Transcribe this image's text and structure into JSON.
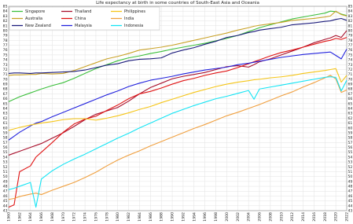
{
  "chart_data": {
    "type": "line",
    "title": "Life expectancy at birth in some countries of South-East Asia and Oceania",
    "x": [
      1960,
      1961,
      1962,
      1964,
      1965,
      1966,
      1968,
      1970,
      1972,
      1974,
      1976,
      1978,
      1980,
      1982,
      1984,
      1986,
      1988,
      1990,
      1992,
      1994,
      1996,
      1998,
      2000,
      2002,
      2004,
      2005,
      2006,
      2008,
      2010,
      2012,
      2014,
      2016,
      2018,
      2019,
      2020,
      2021,
      2022
    ],
    "series": [
      {
        "name": "Singapore",
        "color": "#3cbf3c",
        "values": [
          65.4,
          65.9,
          66.4,
          67.2,
          67.6,
          68,
          68.7,
          69.3,
          70.2,
          71.2,
          72.2,
          73,
          73.8,
          74.4,
          74.8,
          75.3,
          75.7,
          76.2,
          76.6,
          77,
          77.4,
          77.9,
          78.4,
          79,
          79.8,
          80.2,
          80.6,
          81.2,
          81.8,
          82.4,
          82.8,
          83.2,
          83.6,
          84,
          83.9,
          83.4,
          83.1
        ]
      },
      {
        "name": "Australia",
        "color": "#c9a227",
        "values": [
          70.8,
          70.9,
          70.9,
          71,
          71,
          71.2,
          71.1,
          71.2,
          71.8,
          72.6,
          73.4,
          74.2,
          74.7,
          75.3,
          76,
          76.3,
          76.6,
          77,
          77.5,
          78,
          78.5,
          79,
          79.5,
          80.1,
          80.6,
          80.9,
          81.1,
          81.4,
          81.7,
          82.1,
          82.3,
          82.5,
          82.8,
          83,
          84,
          83.3,
          83
        ]
      },
      {
        "name": "New Zealand",
        "color": "#1c1c7c",
        "values": [
          71.2,
          71.3,
          71.3,
          71.2,
          71.3,
          71.3,
          71.4,
          71.5,
          71.6,
          71.9,
          72.4,
          72.9,
          73.2,
          73.8,
          74.1,
          74.2,
          74.4,
          75.4,
          76,
          76.5,
          77.2,
          77.8,
          78.6,
          79,
          79.6,
          79.8,
          80.1,
          80.4,
          80.7,
          81.2,
          81.4,
          81.6,
          81.9,
          82,
          82.3,
          82.5,
          82.1
        ]
      },
      {
        "name": "Thailand",
        "color": "#a8102c",
        "values": [
          54.4,
          54.8,
          55.2,
          56,
          56.4,
          56.8,
          57.9,
          59,
          60.3,
          61.7,
          62.8,
          63.5,
          64.2,
          65.5,
          67,
          68.3,
          69.2,
          70.1,
          70.6,
          71,
          71.4,
          72,
          72.6,
          72.8,
          72.5,
          73,
          73.6,
          74.2,
          75,
          75.8,
          76.6,
          77.5,
          78.2,
          78.5,
          79,
          78.6,
          80
        ]
      },
      {
        "name": "China",
        "color": "#e01414",
        "values": [
          43.7,
          44.2,
          51,
          52.2,
          54,
          55,
          57,
          59.1,
          60.8,
          61.8,
          62.4,
          63.6,
          64.7,
          66,
          67,
          67.5,
          68.2,
          69,
          69.7,
          70.2,
          70.8,
          71.3,
          71.7,
          72.4,
          73.2,
          73.6,
          74,
          74.8,
          75.5,
          76,
          76.6,
          77.2,
          77.8,
          78,
          78.4,
          78.2,
          78.6
        ]
      },
      {
        "name": "Malaysia",
        "color": "#2222dd",
        "values": [
          57.5,
          58.3,
          59.1,
          60.4,
          61,
          61.3,
          62.3,
          63.2,
          64.1,
          65,
          65.9,
          66.8,
          67.6,
          68.5,
          69.2,
          69.8,
          70.2,
          70.6,
          71.1,
          71.5,
          71.9,
          72.2,
          72.5,
          73,
          73.3,
          73.5,
          73.7,
          74.1,
          74.5,
          74.8,
          75.1,
          75.3,
          75.5,
          75.6,
          74.9,
          74.2,
          76.2
        ]
      },
      {
        "name": "Philippines",
        "color": "#f5c518",
        "values": [
          59.5,
          59.8,
          60.1,
          60.6,
          60.8,
          61,
          61.3,
          61.7,
          61.9,
          61.9,
          61.6,
          62,
          62.5,
          63.1,
          63.8,
          64.4,
          65.2,
          65.9,
          66.6,
          67.3,
          67.9,
          68.5,
          69,
          69.4,
          69.7,
          69.9,
          70,
          70.3,
          70.5,
          70.8,
          71.2,
          71.5,
          71.8,
          72,
          72.2,
          69.4,
          70.8
        ]
      },
      {
        "name": "India",
        "color": "#f0a040",
        "values": [
          45.3,
          45.5,
          45.9,
          46.4,
          46.6,
          46.3,
          47.2,
          48,
          48.8,
          49.8,
          50.9,
          52.2,
          53.4,
          54.4,
          55.3,
          56.3,
          57.2,
          58.1,
          59,
          59.9,
          60.7,
          61.6,
          62.5,
          63.2,
          64,
          64.4,
          64.8,
          65.7,
          66.6,
          67.4,
          68.4,
          69.3,
          70.3,
          70.8,
          70.1,
          67.3,
          67.8
        ]
      },
      {
        "name": "Indonesia",
        "color": "#14e4f4",
        "values": [
          47.3,
          47.6,
          48,
          48.8,
          43.7,
          49.5,
          51.2,
          52.5,
          53.6,
          54.6,
          55.7,
          56.8,
          57.9,
          58.9,
          60,
          61,
          62,
          63,
          63.8,
          64.6,
          65.3,
          66,
          66.5,
          67.1,
          67.7,
          65.9,
          68,
          68.4,
          68.8,
          69.2,
          69.6,
          70,
          70.4,
          70.5,
          70.4,
          67.6,
          69.8
        ]
      }
    ],
    "xlim": [
      1960,
      2022
    ],
    "ylim": [
      43,
      85
    ],
    "xticks": [
      1960,
      1962,
      1964,
      1966,
      1968,
      1970,
      1972,
      1974,
      1976,
      1978,
      1980,
      1982,
      1984,
      1986,
      1988,
      1990,
      1992,
      1994,
      1996,
      1998,
      2000,
      2002,
      2004,
      2006,
      2008,
      2010,
      2012,
      2014,
      2016,
      2018,
      2020,
      2022
    ],
    "yticks": [
      43,
      44,
      45,
      46,
      47,
      48,
      49,
      50,
      51,
      52,
      53,
      54,
      55,
      56,
      57,
      58,
      59,
      60,
      61,
      62,
      63,
      64,
      65,
      66,
      67,
      68,
      69,
      70,
      71,
      72,
      73,
      74,
      75,
      76,
      77,
      78,
      79,
      80,
      81,
      82,
      83,
      84,
      85
    ],
    "grid": true,
    "legend": "upper-left"
  }
}
